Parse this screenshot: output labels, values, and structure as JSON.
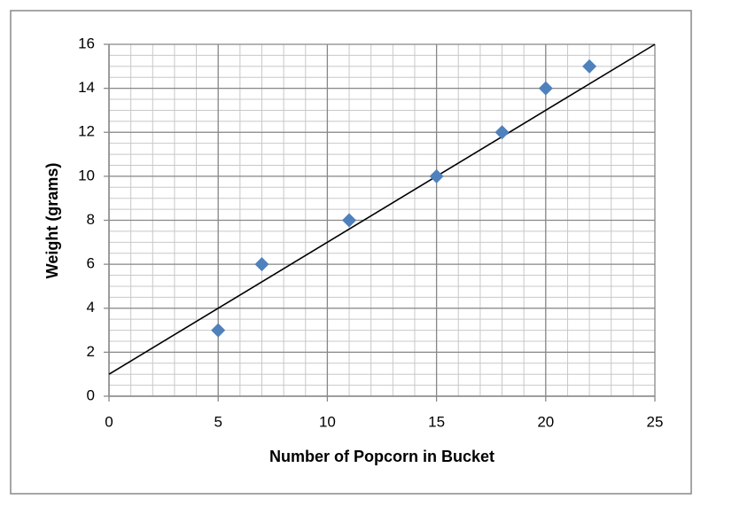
{
  "chart_data": {
    "type": "scatter",
    "x_label": "Number of Popcorn in Bucket",
    "y_label": "Weight (grams)",
    "series": [
      {
        "color": "#4f81bd",
        "x": [
          5,
          7,
          11,
          15,
          18,
          20,
          22
        ],
        "values": [
          3,
          6,
          8,
          10,
          12,
          14,
          15
        ]
      }
    ],
    "trendline": {
      "color": "#000000",
      "x": [
        0,
        25
      ],
      "values": [
        1,
        16
      ]
    },
    "xlim": [
      0,
      25
    ],
    "ylim": [
      0,
      16
    ],
    "xticks": [
      0,
      5,
      10,
      15,
      20,
      25
    ],
    "yticks": [
      0,
      2,
      4,
      6,
      8,
      10,
      12,
      14,
      16
    ],
    "grid": true,
    "minor_grid": {
      "x": 1,
      "y": 0.5
    }
  }
}
